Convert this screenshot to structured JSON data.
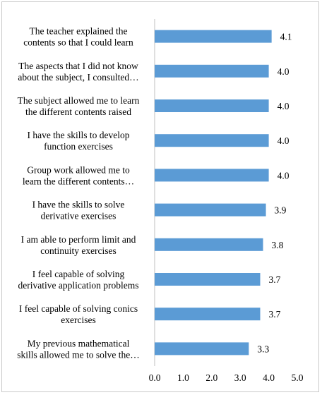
{
  "chart_data": {
    "type": "bar",
    "orientation": "horizontal",
    "title": "",
    "xlabel": "",
    "ylabel": "",
    "categories": [
      [
        "The teacher explained the",
        "contents so that I could learn"
      ],
      [
        "The aspects that I did not know",
        "about the subject, I consulted…"
      ],
      [
        "The subject allowed me to learn",
        "the different contents raised"
      ],
      [
        "I have the skills to develop",
        "function exercises"
      ],
      [
        "Group work allowed me to",
        "learn the different contents…"
      ],
      [
        "I have the skills to solve",
        "derivative exercises"
      ],
      [
        "I am able to perform limit and",
        "continuity exercises"
      ],
      [
        "I feel capable of solving",
        "derivative application problems"
      ],
      [
        "I feel capable of solving conics",
        "exercises"
      ],
      [
        "My previous mathematical",
        "skills allowed me to solve the…"
      ]
    ],
    "values": [
      4.1,
      4.0,
      4.0,
      4.0,
      4.0,
      3.9,
      3.8,
      3.7,
      3.7,
      3.3
    ],
    "data_labels": [
      "4.1",
      "4.0",
      "4.0",
      "4.0",
      "4.0",
      "3.9",
      "3.8",
      "3.7",
      "3.7",
      "3.3"
    ],
    "xlim": [
      0,
      5
    ],
    "x_ticks": [
      "0.0",
      "1.0",
      "2.0",
      "3.0",
      "4.0",
      "5.0"
    ],
    "grid": false,
    "legend": "none",
    "colors": {
      "bar": "#5b9bd5",
      "axis": "#bfbfbf",
      "text": "#000000"
    }
  }
}
